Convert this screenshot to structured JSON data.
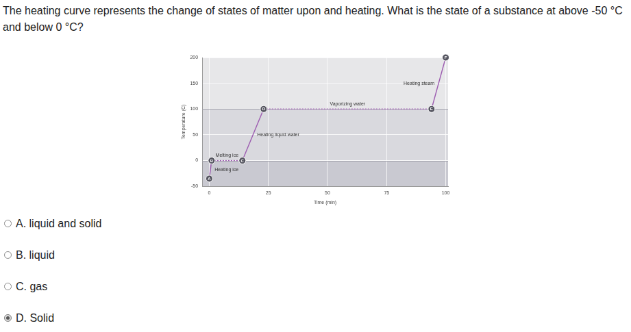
{
  "question": "The heating curve represents the change of states of matter upon and heating. What is the state of a substance at above -50 °C and below 0 °C?",
  "options": [
    {
      "label": "A.",
      "text": "liquid and solid"
    },
    {
      "label": "B.",
      "text": "liquid"
    },
    {
      "label": "C.",
      "text": "gas"
    },
    {
      "label": "D.",
      "text": "Solid"
    }
  ],
  "selected": "D.",
  "chart_data": {
    "type": "line",
    "x_label": "Time (min)",
    "y_label": "Temperature (C)",
    "xlim": [
      -3,
      101
    ],
    "xticks": [
      0,
      25,
      50,
      75,
      100
    ],
    "ylim": [
      -50,
      200
    ],
    "yticks": [
      -50,
      0,
      50,
      100,
      150,
      200
    ],
    "grid": true,
    "bands": [
      {
        "from": -50,
        "to": 0,
        "color": "#c9c9d1"
      },
      {
        "from": 0,
        "to": 100,
        "color": "#d9d9de"
      },
      {
        "from": 100,
        "to": 200,
        "color": "#e7e7e9"
      }
    ],
    "points": [
      {
        "label": "A",
        "x": 0,
        "y": -35
      },
      {
        "label": "B",
        "x": 1,
        "y": 0
      },
      {
        "label": "C",
        "x": 14,
        "y": 0
      },
      {
        "label": "D",
        "x": 23,
        "y": 100
      },
      {
        "label": "E",
        "x": 94,
        "y": 100
      },
      {
        "label": "F",
        "x": 100,
        "y": 200
      }
    ],
    "series": [
      {
        "name": "Heating ice",
        "from": "A",
        "to": "B",
        "color": "#9c5bb0",
        "line_style": "solid"
      },
      {
        "name": "Melting ice",
        "from": "B",
        "to": "C",
        "color": "#9c5bb0",
        "line_style": "dotted"
      },
      {
        "name": "Heating liquid water",
        "from": "C",
        "to": "D",
        "color": "#9c5bb0",
        "line_style": "solid"
      },
      {
        "name": "Vaporizing water",
        "from": "D",
        "to": "E",
        "color": "#9c5bb0",
        "line_style": "dotted"
      },
      {
        "name": "Heating steam",
        "from": "E",
        "to": "F",
        "color": "#9c5bb0",
        "line_style": "solid"
      }
    ]
  }
}
